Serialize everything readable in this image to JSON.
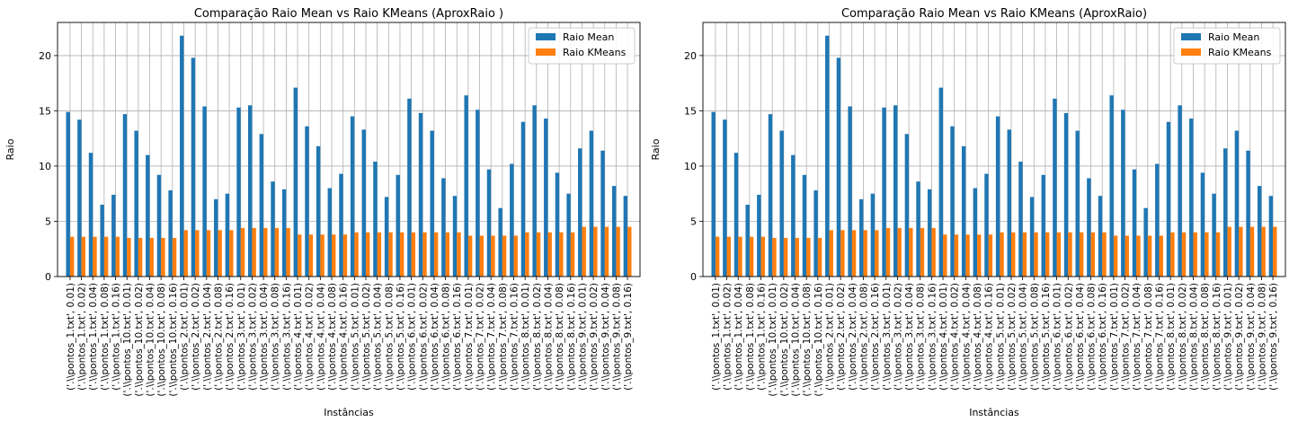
{
  "chart_data": [
    {
      "type": "bar",
      "title": "Comparação Raio Mean vs Raio KMeans (AproxRaio )",
      "xlabel": "Instâncias",
      "ylabel": "Raio",
      "ylim": [
        0,
        23
      ],
      "yticks": [
        0,
        5,
        10,
        15,
        20
      ],
      "grid": true,
      "legend_position": "top-right",
      "categories": [
        "('.\\\\pontos_1.txt', 0.01)",
        "('.\\\\pontos_1.txt', 0.02)",
        "('.\\\\pontos_1.txt', 0.04)",
        "('.\\\\pontos_1.txt', 0.08)",
        "('.\\\\pontos_1.txt', 0.16)",
        "('.\\\\pontos_10.txt', 0.01)",
        "('.\\\\pontos_10.txt', 0.02)",
        "('.\\\\pontos_10.txt', 0.04)",
        "('.\\\\pontos_10.txt', 0.08)",
        "('.\\\\pontos_10.txt', 0.16)",
        "('.\\\\pontos_2.txt', 0.01)",
        "('.\\\\pontos_2.txt', 0.02)",
        "('.\\\\pontos_2.txt', 0.04)",
        "('.\\\\pontos_2.txt', 0.08)",
        "('.\\\\pontos_2.txt', 0.16)",
        "('.\\\\pontos_3.txt', 0.01)",
        "('.\\\\pontos_3.txt', 0.02)",
        "('.\\\\pontos_3.txt', 0.04)",
        "('.\\\\pontos_3.txt', 0.08)",
        "('.\\\\pontos_3.txt', 0.16)",
        "('.\\\\pontos_4.txt', 0.01)",
        "('.\\\\pontos_4.txt', 0.02)",
        "('.\\\\pontos_4.txt', 0.04)",
        "('.\\\\pontos_4.txt', 0.08)",
        "('.\\\\pontos_4.txt', 0.16)",
        "('.\\\\pontos_5.txt', 0.01)",
        "('.\\\\pontos_5.txt', 0.02)",
        "('.\\\\pontos_5.txt', 0.04)",
        "('.\\\\pontos_5.txt', 0.08)",
        "('.\\\\pontos_5.txt', 0.16)",
        "('.\\\\pontos_6.txt', 0.01)",
        "('.\\\\pontos_6.txt', 0.02)",
        "('.\\\\pontos_6.txt', 0.04)",
        "('.\\\\pontos_6.txt', 0.08)",
        "('.\\\\pontos_6.txt', 0.16)",
        "('.\\\\pontos_7.txt', 0.01)",
        "('.\\\\pontos_7.txt', 0.02)",
        "('.\\\\pontos_7.txt', 0.04)",
        "('.\\\\pontos_7.txt', 0.08)",
        "('.\\\\pontos_7.txt', 0.16)",
        "('.\\\\pontos_8.txt', 0.01)",
        "('.\\\\pontos_8.txt', 0.02)",
        "('.\\\\pontos_8.txt', 0.04)",
        "('.\\\\pontos_8.txt', 0.08)",
        "('.\\\\pontos_8.txt', 0.16)",
        "('.\\\\pontos_9.txt', 0.01)",
        "('.\\\\pontos_9.txt', 0.02)",
        "('.\\\\pontos_9.txt', 0.04)",
        "('.\\\\pontos_9.txt', 0.08)",
        "('.\\\\pontos_9.txt', 0.16)"
      ],
      "series": [
        {
          "name": "Raio Mean",
          "color": "#1f77b4",
          "values": [
            14.9,
            14.2,
            11.2,
            6.5,
            7.4,
            14.7,
            13.2,
            11.0,
            9.2,
            7.8,
            21.8,
            19.8,
            15.4,
            7.0,
            7.5,
            15.3,
            15.5,
            12.9,
            8.6,
            7.9,
            17.1,
            13.6,
            11.8,
            8.0,
            9.3,
            14.5,
            13.3,
            10.4,
            7.2,
            9.2,
            16.1,
            14.8,
            13.2,
            8.9,
            7.3,
            16.4,
            15.1,
            9.7,
            6.2,
            10.2,
            14.0,
            15.5,
            14.3,
            9.4,
            7.5,
            11.6,
            13.2,
            11.4,
            8.2,
            7.3
          ]
        },
        {
          "name": "Raio KMeans",
          "color": "#ff7f0e",
          "values": [
            3.6,
            3.6,
            3.6,
            3.6,
            3.6,
            3.5,
            3.5,
            3.5,
            3.5,
            3.5,
            4.2,
            4.2,
            4.2,
            4.2,
            4.2,
            4.4,
            4.4,
            4.4,
            4.4,
            4.4,
            3.8,
            3.8,
            3.8,
            3.8,
            3.8,
            4.0,
            4.0,
            4.0,
            4.0,
            4.0,
            4.0,
            4.0,
            4.0,
            4.0,
            4.0,
            3.7,
            3.7,
            3.7,
            3.7,
            3.7,
            4.0,
            4.0,
            4.0,
            4.0,
            4.0,
            4.5,
            4.5,
            4.5,
            4.5,
            4.5
          ]
        }
      ]
    },
    {
      "type": "bar",
      "title": "Comparação Raio Mean vs Raio KMeans (AproxRaio)",
      "xlabel": "Instâncias",
      "ylabel": "Raio",
      "ylim": [
        0,
        23
      ],
      "yticks": [
        0,
        5,
        10,
        15,
        20
      ],
      "grid": true,
      "legend_position": "top-right",
      "categories": [
        "('.\\\\pontos_1.txt', 0.01)",
        "('.\\\\pontos_1.txt', 0.02)",
        "('.\\\\pontos_1.txt', 0.04)",
        "('.\\\\pontos_1.txt', 0.08)",
        "('.\\\\pontos_1.txt', 0.16)",
        "('.\\\\pontos_10.txt', 0.01)",
        "('.\\\\pontos_10.txt', 0.02)",
        "('.\\\\pontos_10.txt', 0.04)",
        "('.\\\\pontos_10.txt', 0.08)",
        "('.\\\\pontos_10.txt', 0.16)",
        "('.\\\\pontos_2.txt', 0.01)",
        "('.\\\\pontos_2.txt', 0.02)",
        "('.\\\\pontos_2.txt', 0.04)",
        "('.\\\\pontos_2.txt', 0.08)",
        "('.\\\\pontos_2.txt', 0.16)",
        "('.\\\\pontos_3.txt', 0.01)",
        "('.\\\\pontos_3.txt', 0.02)",
        "('.\\\\pontos_3.txt', 0.04)",
        "('.\\\\pontos_3.txt', 0.08)",
        "('.\\\\pontos_3.txt', 0.16)",
        "('.\\\\pontos_4.txt', 0.01)",
        "('.\\\\pontos_4.txt', 0.02)",
        "('.\\\\pontos_4.txt', 0.04)",
        "('.\\\\pontos_4.txt', 0.08)",
        "('.\\\\pontos_4.txt', 0.16)",
        "('.\\\\pontos_5.txt', 0.01)",
        "('.\\\\pontos_5.txt', 0.02)",
        "('.\\\\pontos_5.txt', 0.04)",
        "('.\\\\pontos_5.txt', 0.08)",
        "('.\\\\pontos_5.txt', 0.16)",
        "('.\\\\pontos_6.txt', 0.01)",
        "('.\\\\pontos_6.txt', 0.02)",
        "('.\\\\pontos_6.txt', 0.04)",
        "('.\\\\pontos_6.txt', 0.08)",
        "('.\\\\pontos_6.txt', 0.16)",
        "('.\\\\pontos_7.txt', 0.01)",
        "('.\\\\pontos_7.txt', 0.02)",
        "('.\\\\pontos_7.txt', 0.04)",
        "('.\\\\pontos_7.txt', 0.08)",
        "('.\\\\pontos_7.txt', 0.16)",
        "('.\\\\pontos_8.txt', 0.01)",
        "('.\\\\pontos_8.txt', 0.02)",
        "('.\\\\pontos_8.txt', 0.04)",
        "('.\\\\pontos_8.txt', 0.08)",
        "('.\\\\pontos_8.txt', 0.16)",
        "('.\\\\pontos_9.txt', 0.01)",
        "('.\\\\pontos_9.txt', 0.02)",
        "('.\\\\pontos_9.txt', 0.04)",
        "('.\\\\pontos_9.txt', 0.08)",
        "('.\\\\pontos_9.txt', 0.16)"
      ],
      "series": [
        {
          "name": "Raio Mean",
          "color": "#1f77b4",
          "values": [
            14.9,
            14.2,
            11.2,
            6.5,
            7.4,
            14.7,
            13.2,
            11.0,
            9.2,
            7.8,
            21.8,
            19.8,
            15.4,
            7.0,
            7.5,
            15.3,
            15.5,
            12.9,
            8.6,
            7.9,
            17.1,
            13.6,
            11.8,
            8.0,
            9.3,
            14.5,
            13.3,
            10.4,
            7.2,
            9.2,
            16.1,
            14.8,
            13.2,
            8.9,
            7.3,
            16.4,
            15.1,
            9.7,
            6.2,
            10.2,
            14.0,
            15.5,
            14.3,
            9.4,
            7.5,
            11.6,
            13.2,
            11.4,
            8.2,
            7.3
          ]
        },
        {
          "name": "Raio KMeans",
          "color": "#ff7f0e",
          "values": [
            3.6,
            3.6,
            3.6,
            3.6,
            3.6,
            3.5,
            3.5,
            3.5,
            3.5,
            3.5,
            4.2,
            4.2,
            4.2,
            4.2,
            4.2,
            4.4,
            4.4,
            4.4,
            4.4,
            4.4,
            3.8,
            3.8,
            3.8,
            3.8,
            3.8,
            4.0,
            4.0,
            4.0,
            4.0,
            4.0,
            4.0,
            4.0,
            4.0,
            4.0,
            4.0,
            3.7,
            3.7,
            3.7,
            3.7,
            3.7,
            4.0,
            4.0,
            4.0,
            4.0,
            4.0,
            4.5,
            4.5,
            4.5,
            4.5,
            4.5
          ]
        }
      ]
    }
  ]
}
